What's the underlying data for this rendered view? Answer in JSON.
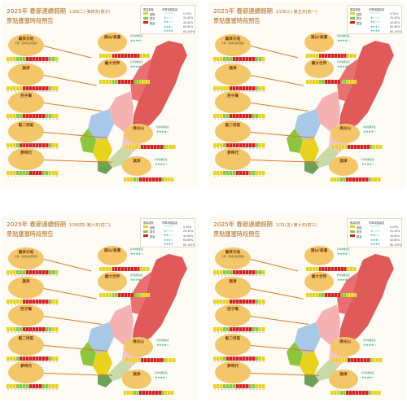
{
  "panels": [
    {
      "title": "2025年 春節連續假期",
      "date": "1/28(二) 第四天(除夕)",
      "subtitle": "景點壅塞時段預告"
    },
    {
      "title": "2025年 春節連續假期",
      "date": "1/29(三) 第五天(初一)",
      "subtitle": "景點壅塞時段預告"
    },
    {
      "title": "2025年 春節連續假期",
      "date": "1/30(四) 第六天(初二)",
      "subtitle": "景點壅塞時段預告"
    },
    {
      "title": "2025年 春節連續假期",
      "date": "1/31(五) 第七天(初三)",
      "subtitle": "景點壅塞時段預告"
    }
  ],
  "legend": {
    "header_left": "壅塞程度",
    "header_right": "停車場壅塞度",
    "levels": [
      {
        "label": "順暢",
        "color": "#e9d21e",
        "stars": "☆☆☆☆",
        "pct": "0-20%"
      },
      {
        "label": "車多",
        "color": "#8cc63f",
        "stars": "★☆☆☆",
        "pct": "20-40%"
      },
      {
        "label": "壅塞",
        "color": "#d62121",
        "stars": "★★☆☆",
        "pct": "40-60%"
      },
      {
        "label": "",
        "color": "",
        "stars": "★★★☆",
        "pct": "60-80%"
      },
      {
        "label": "",
        "color": "",
        "stars": "★★★★",
        "pct": "80-100%"
      }
    ]
  },
  "spots_left": [
    {
      "name": "義享天地",
      "sub": "大樂・漢神巨蛋周邊區"
    },
    {
      "name": "旗津",
      "sub": ""
    },
    {
      "name": "西子灣",
      "sub": ""
    },
    {
      "name": "駁二特區",
      "sub": ""
    },
    {
      "name": "夢時代",
      "sub": ""
    }
  ],
  "spots_right": [
    {
      "name": "旗山/美濃",
      "sub": ""
    },
    {
      "name": "義大世界",
      "sub": ""
    },
    {
      "name": "佛光山",
      "sub": ""
    },
    {
      "name": "旗津",
      "sub": ""
    }
  ],
  "recommend": {
    "label": "停車場壅塞度",
    "stars": "★★★★☆"
  },
  "hours": [
    "8",
    "9",
    "10",
    "11",
    "12",
    "13",
    "14",
    "15",
    "16",
    "17",
    "18",
    "19",
    "20",
    "21",
    "22"
  ],
  "colors": {
    "accent": "#b06a1e",
    "spot": "#f3c66a",
    "map_red": "#e05a5a",
    "map_pink": "#f4b2b2"
  }
}
